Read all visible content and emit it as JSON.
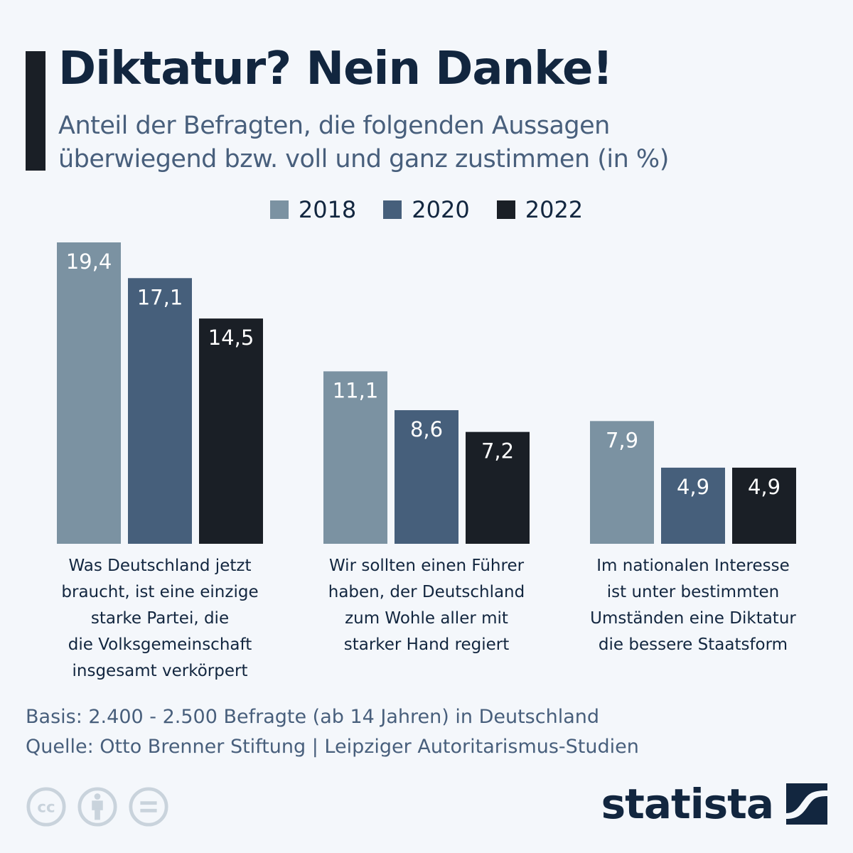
{
  "header": {
    "title": "Diktatur? Nein Danke!",
    "subtitle_lines": [
      "Anteil der Befragten, die folgenden Aussagen",
      "überwiegend bzw. voll und ganz zustimmen (in %)"
    ]
  },
  "colors": {
    "accent": "#1a1f26",
    "title": "#12263f",
    "subtitle": "#485f7c",
    "background": "#f4f7fb"
  },
  "chart_data": {
    "type": "bar",
    "title": "Diktatur? Nein Danke!",
    "subtitle": "Anteil der Befragten, die folgenden Aussagen überwiegend bzw. voll und ganz zustimmen (in %)",
    "xlabel": "",
    "ylabel": "",
    "ylim": [
      0,
      19.4
    ],
    "grid": false,
    "legend_position": "top-center",
    "categories": [
      "Was Deutschland jetzt braucht, ist eine einzige starke Partei, die die Volksgemeinschaft insgesamt verkörpert",
      "Wir sollten einen Führer haben, der Deutschland zum Wohle aller mit starker Hand regiert",
      "Im nationalen Interesse ist unter bestimmten Umständen eine Diktatur die bessere Staatsform"
    ],
    "category_label_lines": [
      [
        "Was Deutschland jetzt",
        "braucht, ist eine einzige",
        "starke Partei, die",
        "die Volksgemeinschaft",
        "insgesamt verkörpert"
      ],
      [
        "Wir sollten einen Führer",
        "haben, der Deutschland",
        "zum Wohle aller mit",
        "starker Hand regiert"
      ],
      [
        "Im nationalen Interesse",
        "ist unter bestimmten",
        "Umständen eine Diktatur",
        "die bessere Staatsform"
      ]
    ],
    "series": [
      {
        "name": "2018",
        "color": "#7b92a2",
        "values": [
          19.4,
          11.1,
          7.9
        ],
        "labels": [
          "19,4",
          "11,1",
          "7,9"
        ]
      },
      {
        "name": "2020",
        "color": "#465f7b",
        "values": [
          17.1,
          8.6,
          4.9
        ],
        "labels": [
          "17,1",
          "8,6",
          "4,9"
        ]
      },
      {
        "name": "2022",
        "color": "#1a1f26",
        "values": [
          14.5,
          7.2,
          4.9
        ],
        "labels": [
          "14,5",
          "7,2",
          "4,9"
        ]
      }
    ]
  },
  "footer": {
    "basis": "Basis: 2.400 - 2.500 Befragte (ab 14 Jahren) in Deutschland",
    "source": "Quelle: Otto Brenner Stiftung | Leipziger Autoritarismus-Studien"
  },
  "license_icons": [
    "cc-icon",
    "attribution-icon",
    "no-derivatives-icon"
  ],
  "logo": {
    "text": "statista"
  }
}
